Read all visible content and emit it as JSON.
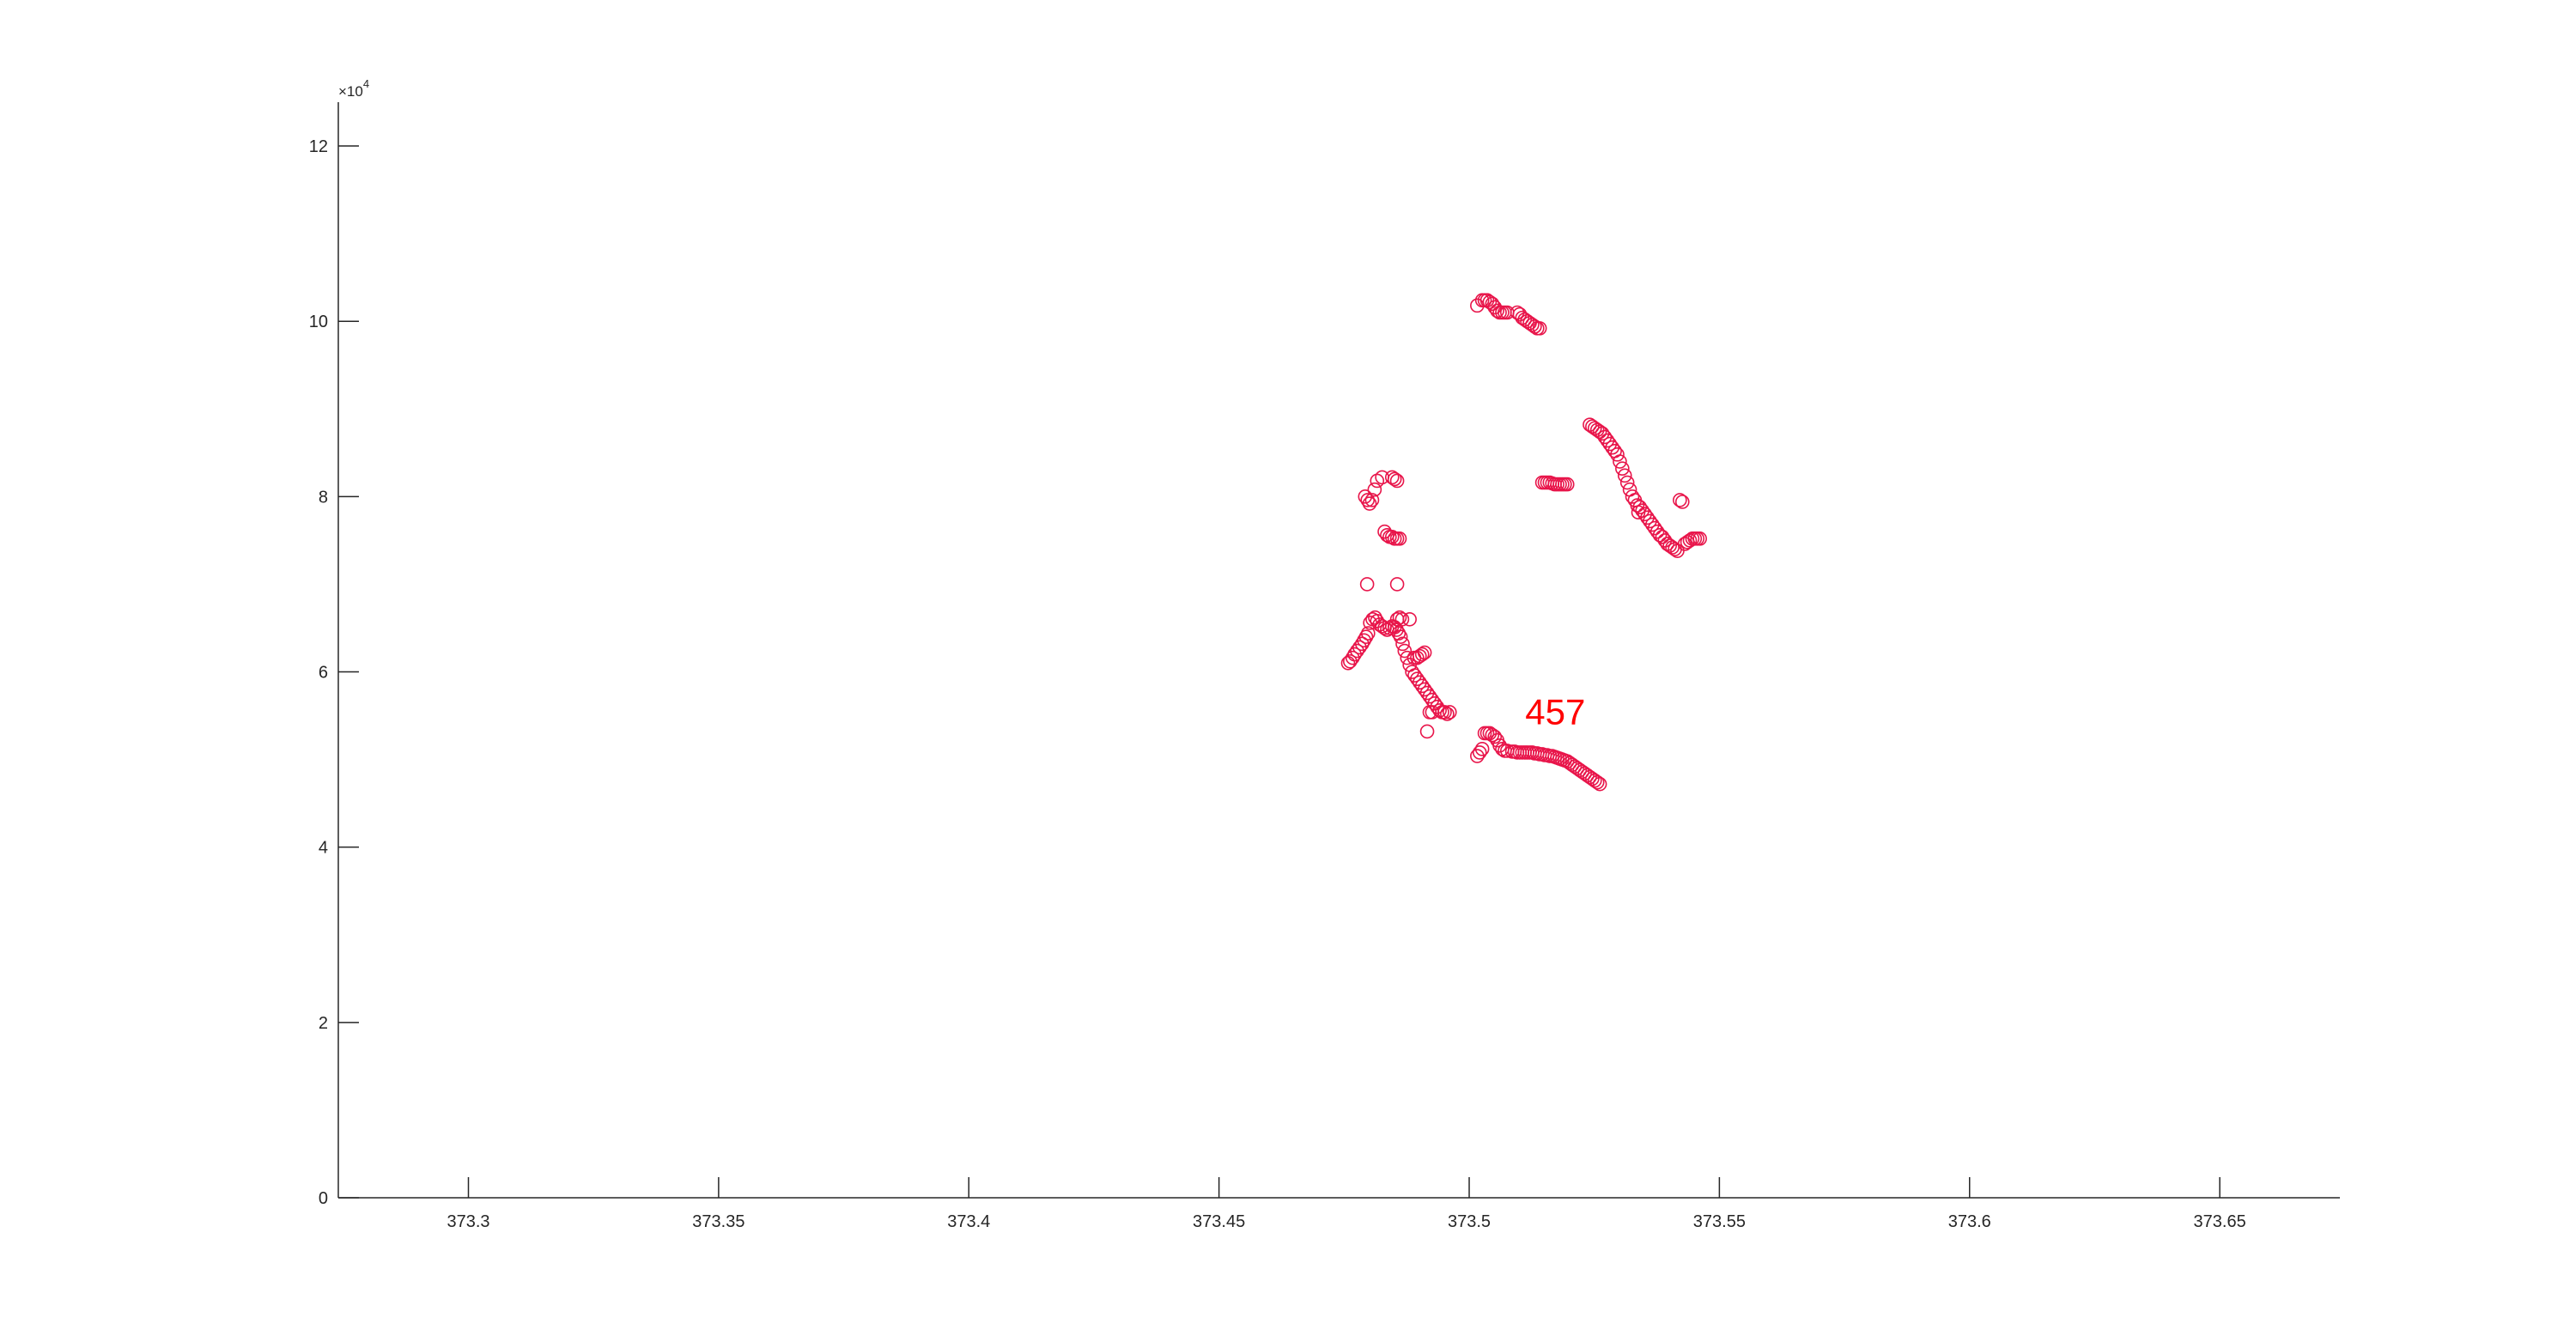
{
  "chart_data": {
    "type": "scatter",
    "title": "",
    "xlabel": "",
    "ylabel": "",
    "xlim": [
      373.274,
      373.674
    ],
    "ylim": [
      0,
      125000
    ],
    "x_ticks": [
      {
        "value": 373.3,
        "label": "373.3"
      },
      {
        "value": 373.35,
        "label": "373.35"
      },
      {
        "value": 373.4,
        "label": "373.4"
      },
      {
        "value": 373.45,
        "label": "373.45"
      },
      {
        "value": 373.5,
        "label": "373.5"
      },
      {
        "value": 373.55,
        "label": "373.55"
      },
      {
        "value": 373.6,
        "label": "373.6"
      },
      {
        "value": 373.65,
        "label": "373.65"
      }
    ],
    "y_ticks": [
      {
        "value": 0,
        "label": "0"
      },
      {
        "value": 20000,
        "label": "2"
      },
      {
        "value": 40000,
        "label": "4"
      },
      {
        "value": 60000,
        "label": "6"
      },
      {
        "value": 80000,
        "label": "8"
      },
      {
        "value": 100000,
        "label": "10"
      },
      {
        "value": 120000,
        "label": "12"
      }
    ],
    "y_exponent_label": "×10",
    "y_exponent_power": "4",
    "marker": "circle-open",
    "marker_color": "#e8154a",
    "grid": false,
    "annotation": {
      "text": "457",
      "x": 373.5112,
      "y": 55400,
      "color": "#ff0000"
    },
    "series": [
      {
        "x": [
          373.4758,
          373.4762,
          373.4767,
          373.4771,
          373.4776,
          373.4781,
          373.4786,
          373.479,
          373.4794,
          373.4798,
          373.4802,
          373.4807,
          373.4812,
          373.4816,
          373.4821,
          373.4826,
          373.4831,
          373.4836,
          373.4841,
          373.4846,
          373.4851,
          373.4855,
          373.4859,
          373.4863,
          373.4867,
          373.4871,
          373.4876,
          373.4881,
          373.4886,
          373.4891,
          373.4896,
          373.4901,
          373.4906,
          373.4911,
          373.4916,
          373.4921,
          373.4926,
          373.4931,
          373.4936,
          373.4941,
          373.4946,
          373.4951,
          373.4956,
          373.4961
        ],
        "y": [
          61000,
          61200,
          61600,
          62000,
          62400,
          62800,
          63200,
          63600,
          64000,
          64400,
          65600,
          66000,
          66200,
          65800,
          65400,
          65200,
          65000,
          64800,
          65000,
          65200,
          65100,
          64800,
          64400,
          64000,
          63200,
          62400,
          61600,
          60800,
          60000,
          59600,
          59200,
          58800,
          58400,
          58000,
          57600,
          57200,
          56800,
          56400,
          56000,
          55600,
          55400,
          55400,
          55200,
          55400
        ]
      },
      {
        "x": [
          373.4792,
          373.4797,
          373.4801,
          373.4806,
          373.4811,
          373.4816,
          373.4826,
          373.4831,
          373.4836,
          373.4841,
          373.4846,
          373.4851,
          373.4856,
          373.4861,
          373.4846,
          373.4851,
          373.4856,
          373.4861,
          373.4866,
          373.4881,
          373.489,
          373.4896,
          373.4901,
          373.4906,
          373.4911,
          373.4916,
          373.4921,
          373.4926,
          373.4856,
          373.4796,
          373.4856
        ],
        "y": [
          80000,
          79600,
          79200,
          79600,
          80800,
          81800,
          82200,
          76000,
          75600,
          75400,
          75400,
          75200,
          75200,
          75200,
          82200,
          82000,
          81800,
          66200,
          66000,
          66000,
          61600,
          61600,
          61800,
          62000,
          62200,
          53200,
          55400,
          55400,
          70000,
          70000,
          66000
        ]
      },
      {
        "x": [
          373.5016,
          373.5021,
          373.5026,
          373.5031,
          373.5036,
          373.5041,
          373.5046,
          373.5051,
          373.5056,
          373.5061,
          373.5066,
          373.5071,
          373.5076,
          373.5086,
          373.5091,
          373.5096,
          373.5101,
          373.5106,
          373.5111,
          373.5116,
          373.5121,
          373.5126,
          373.5131,
          373.5136,
          373.5141,
          373.5146,
          373.5151,
          373.5156,
          373.5161,
          373.5166,
          373.5171,
          373.5176,
          373.5181,
          373.5186,
          373.5191,
          373.5196,
          373.5201,
          373.5206,
          373.5211,
          373.5216,
          373.5221,
          373.5226,
          373.5231,
          373.5236,
          373.5241,
          373.5246,
          373.5251,
          373.5256,
          373.5261
        ],
        "y": [
          50400,
          50800,
          51200,
          53000,
          53000,
          53000,
          52800,
          52600,
          52200,
          51600,
          51200,
          51000,
          51000,
          50900,
          50900,
          50800,
          50800,
          50800,
          50800,
          50800,
          50800,
          50800,
          50700,
          50700,
          50600,
          50600,
          50500,
          50500,
          50400,
          50400,
          50300,
          50200,
          50100,
          50000,
          49900,
          49800,
          49600,
          49400,
          49200,
          49000,
          48800,
          48600,
          48400,
          48200,
          48000,
          47800,
          47600,
          47400,
          47200
        ]
      },
      {
        "x": [
          373.5016,
          373.5026,
          373.5031,
          373.5036,
          373.5041,
          373.5046,
          373.5051,
          373.5056,
          373.5061,
          373.5066,
          373.5071,
          373.5076,
          373.5096,
          373.5101,
          373.5106,
          373.5111,
          373.5116,
          373.5121,
          373.5126,
          373.5131,
          373.5136,
          373.5141,
          373.5146,
          373.5151,
          373.5156,
          373.5161,
          373.5166,
          373.5171,
          373.5176,
          373.5181,
          373.5186,
          373.5191,
          373.5196
        ],
        "y": [
          101800,
          102400,
          102400,
          102400,
          102200,
          102000,
          101600,
          101200,
          101000,
          101000,
          101000,
          101000,
          101000,
          100800,
          100400,
          100200,
          100000,
          99800,
          99600,
          99400,
          99200,
          99200,
          81600,
          81600,
          81600,
          81600,
          81500,
          81400,
          81400,
          81400,
          81400,
          81400,
          81400
        ]
      },
      {
        "x": [
          373.5241,
          373.5246,
          373.5251,
          373.5256,
          373.5261,
          373.5266,
          373.5271,
          373.5276,
          373.5281,
          373.5286,
          373.5291,
          373.5296,
          373.5301,
          373.5306,
          373.5311,
          373.5316,
          373.5321,
          373.5326,
          373.5331,
          373.5336,
          373.5341,
          373.5346,
          373.5351,
          373.5356,
          373.5361,
          373.5366,
          373.5371,
          373.5376,
          373.5381,
          373.5386,
          373.5391,
          373.5396,
          373.5401,
          373.5406,
          373.5411,
          373.5416,
          373.5421,
          373.5426,
          373.5431,
          373.5436,
          373.5441,
          373.5446,
          373.5451,
          373.5456,
          373.5461,
          373.5338
        ],
        "y": [
          88200,
          88000,
          87800,
          87600,
          87400,
          87200,
          86800,
          86400,
          86000,
          85600,
          85200,
          84800,
          84000,
          83200,
          82400,
          81600,
          80800,
          80000,
          79600,
          79000,
          78800,
          78400,
          78000,
          77600,
          77200,
          76800,
          76400,
          76000,
          75600,
          75400,
          75000,
          74600,
          74400,
          74200,
          74000,
          73800,
          79600,
          79400,
          74600,
          74800,
          75000,
          75200,
          75200,
          75200,
          75200,
          78200
        ]
      }
    ]
  }
}
